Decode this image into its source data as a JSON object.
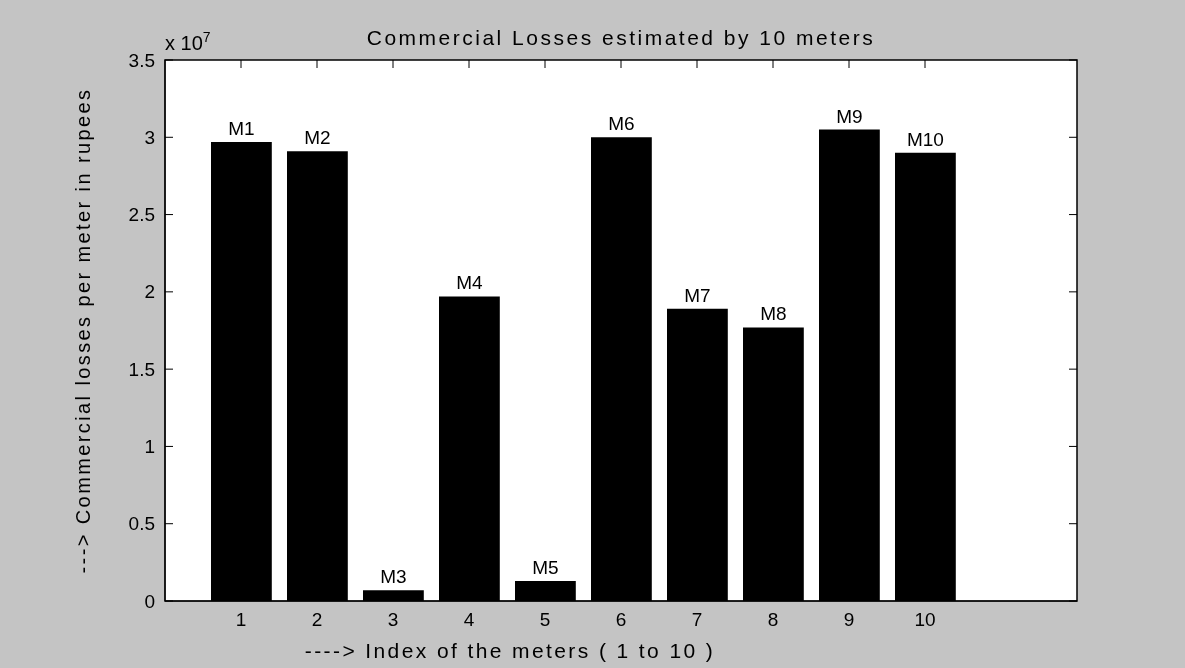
{
  "chart_data": {
    "type": "bar",
    "title": "Commercial Losses estimated by 10 meters",
    "xlabel": "----> Index of the meters ( 1 to 10 )",
    "ylabel": "---> Commercial losses per meter in rupees",
    "annotations": [
      "x 10$^{7}$"
    ],
    "x": [
      1,
      2,
      3,
      4,
      5,
      6,
      7,
      8,
      9,
      10
    ],
    "values": [
      2.97,
      2.91,
      0.07,
      1.97,
      0.13,
      3.0,
      1.89,
      1.77,
      3.05,
      2.9
    ],
    "value_labels": [
      "M1",
      "M2",
      "M3",
      "M4",
      "M5",
      "M6",
      "M7",
      "M8",
      "M9",
      "M10"
    ],
    "color": "#000000",
    "xlim": [
      0,
      12
    ],
    "xticks": [
      1,
      2,
      3,
      4,
      5,
      6,
      7,
      8,
      9,
      10
    ],
    "ylim": [
      0,
      3.5
    ],
    "yticks": [
      0,
      0.5,
      1,
      1.5,
      2,
      2.5,
      3,
      3.5
    ]
  }
}
